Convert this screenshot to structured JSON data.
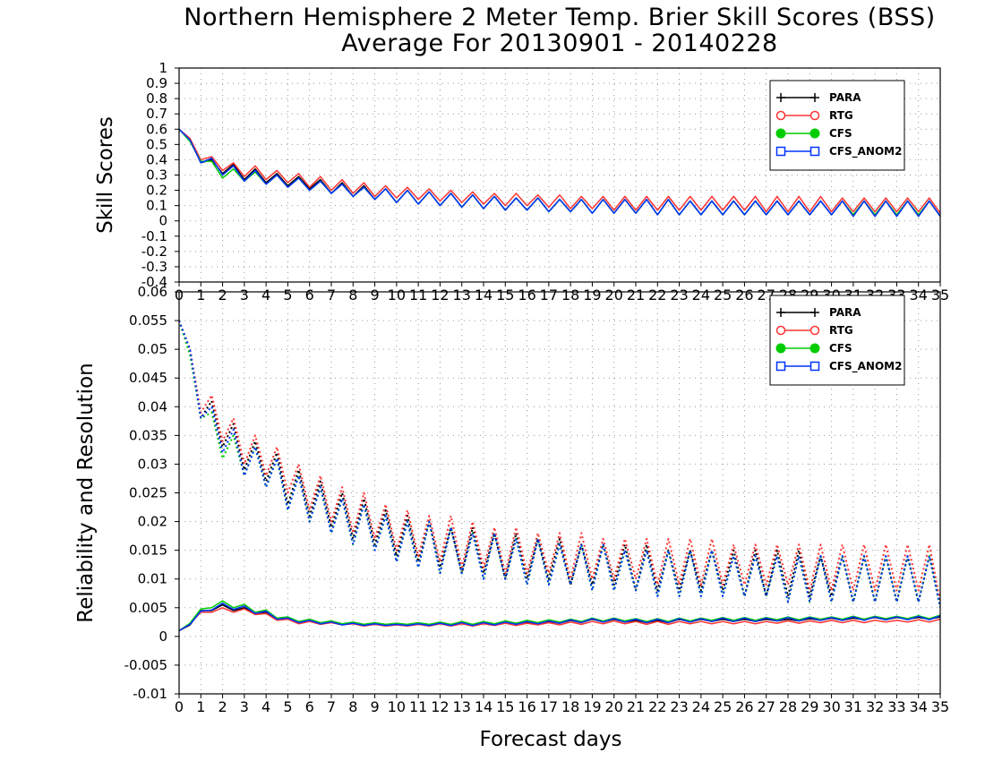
{
  "title": "Northern Hemisphere 2 Meter Temp. Brier Skill Scores (BSS)",
  "subtitle": "Average For 20130901 - 20140228",
  "colors": {
    "PARA": "#000000",
    "RTG": "#ff3333",
    "CFS": "#00cc00",
    "CFS_ANOM2": "#0033ff"
  },
  "chart_data": [
    {
      "type": "line",
      "ylabel": "Skill Scores",
      "xlim": [
        0,
        35
      ],
      "ylim": [
        -0.4,
        1
      ],
      "yticks": [
        -0.4,
        -0.3,
        -0.2,
        -0.1,
        0,
        0.1,
        0.2,
        0.3,
        0.4,
        0.5,
        0.6,
        0.7,
        0.8,
        0.9,
        1
      ],
      "ytick_labels": [
        "-0.4",
        "-0.3",
        "-0.2",
        "-0.1",
        "0",
        "0.1",
        "0.2",
        "0.3",
        "0.4",
        "0.5",
        "0.6",
        "0.7",
        "0.8",
        "0.9",
        "1"
      ],
      "xticks": [
        0,
        1,
        2,
        3,
        4,
        5,
        6,
        7,
        8,
        9,
        10,
        11,
        12,
        13,
        14,
        15,
        16,
        17,
        18,
        19,
        20,
        21,
        22,
        23,
        24,
        25,
        26,
        27,
        28,
        29,
        30,
        31,
        32,
        33,
        34,
        35
      ],
      "grid": true,
      "legend_position": "top-right",
      "series": [
        {
          "name": "PARA",
          "values": [
            0.6,
            0.53,
            0.38,
            0.4,
            0.31,
            0.37,
            0.27,
            0.34,
            0.25,
            0.31,
            0.23,
            0.29,
            0.21,
            0.27,
            0.18,
            0.25,
            0.16,
            0.23,
            0.14,
            0.21,
            0.12,
            0.2,
            0.11,
            0.19,
            0.1,
            0.18,
            0.09,
            0.17,
            0.08,
            0.16,
            0.07,
            0.15,
            0.07,
            0.15,
            0.06,
            0.14,
            0.06,
            0.14,
            0.05,
            0.14,
            0.05,
            0.14,
            0.05,
            0.14,
            0.04,
            0.14,
            0.04,
            0.13,
            0.04,
            0.13,
            0.04,
            0.13,
            0.04,
            0.13,
            0.04,
            0.13,
            0.04,
            0.13,
            0.04,
            0.13,
            0.04,
            0.13,
            0.03,
            0.13,
            0.03,
            0.13,
            0.03,
            0.13,
            0.03,
            0.13,
            0.03
          ]
        },
        {
          "name": "RTG",
          "values": [
            0.6,
            0.54,
            0.4,
            0.42,
            0.33,
            0.38,
            0.29,
            0.36,
            0.27,
            0.33,
            0.25,
            0.31,
            0.22,
            0.29,
            0.2,
            0.27,
            0.18,
            0.25,
            0.16,
            0.23,
            0.15,
            0.22,
            0.14,
            0.21,
            0.13,
            0.2,
            0.12,
            0.19,
            0.11,
            0.18,
            0.1,
            0.18,
            0.1,
            0.17,
            0.09,
            0.17,
            0.08,
            0.16,
            0.08,
            0.16,
            0.07,
            0.16,
            0.07,
            0.16,
            0.07,
            0.16,
            0.07,
            0.16,
            0.07,
            0.16,
            0.07,
            0.16,
            0.07,
            0.16,
            0.06,
            0.16,
            0.06,
            0.16,
            0.06,
            0.16,
            0.06,
            0.15,
            0.06,
            0.15,
            0.06,
            0.15,
            0.06,
            0.15,
            0.06,
            0.15,
            0.05
          ]
        },
        {
          "name": "CFS",
          "values": [
            0.6,
            0.52,
            0.39,
            0.39,
            0.28,
            0.34,
            0.26,
            0.32,
            0.24,
            0.3,
            0.22,
            0.28,
            0.2,
            0.26,
            0.18,
            0.24,
            0.16,
            0.22,
            0.14,
            0.21,
            0.12,
            0.2,
            0.11,
            0.19,
            0.1,
            0.18,
            0.09,
            0.17,
            0.08,
            0.16,
            0.07,
            0.15,
            0.07,
            0.15,
            0.06,
            0.14,
            0.06,
            0.14,
            0.05,
            0.14,
            0.05,
            0.14,
            0.05,
            0.14,
            0.04,
            0.14,
            0.04,
            0.13,
            0.04,
            0.13,
            0.04,
            0.13,
            0.04,
            0.13,
            0.04,
            0.13,
            0.04,
            0.13,
            0.04,
            0.13,
            0.04,
            0.13,
            0.04,
            0.13,
            0.04,
            0.13,
            0.04,
            0.13,
            0.04,
            0.13,
            0.03
          ]
        },
        {
          "name": "CFS_ANOM2",
          "values": [
            0.6,
            0.53,
            0.38,
            0.41,
            0.3,
            0.36,
            0.26,
            0.33,
            0.24,
            0.3,
            0.22,
            0.28,
            0.2,
            0.26,
            0.18,
            0.24,
            0.16,
            0.22,
            0.14,
            0.21,
            0.12,
            0.2,
            0.11,
            0.19,
            0.1,
            0.18,
            0.09,
            0.17,
            0.08,
            0.16,
            0.07,
            0.15,
            0.07,
            0.15,
            0.06,
            0.14,
            0.06,
            0.14,
            0.05,
            0.14,
            0.05,
            0.14,
            0.05,
            0.14,
            0.04,
            0.14,
            0.04,
            0.13,
            0.04,
            0.13,
            0.04,
            0.13,
            0.04,
            0.13,
            0.04,
            0.13,
            0.04,
            0.13,
            0.04,
            0.13,
            0.04,
            0.13,
            0.03,
            0.13,
            0.03,
            0.13,
            0.03,
            0.13,
            0.03,
            0.13,
            0.03
          ]
        }
      ]
    },
    {
      "type": "line",
      "ylabel": "Reliability and Resolution",
      "xlabel": "Forecast days",
      "xlim": [
        0,
        35
      ],
      "ylim": [
        -0.01,
        0.06
      ],
      "yticks": [
        -0.01,
        -0.005,
        0,
        0.005,
        0.01,
        0.015,
        0.02,
        0.025,
        0.03,
        0.035,
        0.04,
        0.045,
        0.05,
        0.055,
        0.06
      ],
      "ytick_labels": [
        "-0.01",
        "-0.005",
        "0",
        "0.005",
        "0.01",
        "0.015",
        "0.02",
        "0.025",
        "0.03",
        "0.035",
        "0.04",
        "0.045",
        "0.05",
        "0.055",
        "0.06"
      ],
      "xticks": [
        0,
        1,
        2,
        3,
        4,
        5,
        6,
        7,
        8,
        9,
        10,
        11,
        12,
        13,
        14,
        15,
        16,
        17,
        18,
        19,
        20,
        21,
        22,
        23,
        24,
        25,
        26,
        27,
        28,
        29,
        30,
        31,
        32,
        33,
        34,
        35
      ],
      "grid": true,
      "legend_position": "top-right",
      "resolution_series": [
        {
          "name": "PARA",
          "values": [
            0.055,
            0.05,
            0.038,
            0.041,
            0.033,
            0.037,
            0.029,
            0.034,
            0.027,
            0.032,
            0.023,
            0.029,
            0.021,
            0.027,
            0.019,
            0.025,
            0.017,
            0.024,
            0.016,
            0.022,
            0.014,
            0.021,
            0.013,
            0.02,
            0.012,
            0.019,
            0.011,
            0.019,
            0.011,
            0.018,
            0.01,
            0.018,
            0.01,
            0.017,
            0.01,
            0.017,
            0.009,
            0.016,
            0.009,
            0.016,
            0.009,
            0.016,
            0.008,
            0.016,
            0.008,
            0.015,
            0.008,
            0.015,
            0.008,
            0.015,
            0.008,
            0.015,
            0.007,
            0.015,
            0.007,
            0.015,
            0.007,
            0.015,
            0.007,
            0.014,
            0.007,
            0.014,
            0.006,
            0.014,
            0.006,
            0.014,
            0.006,
            0.014,
            0.006,
            0.014,
            0.006
          ]
        },
        {
          "name": "RTG",
          "values": [
            0.055,
            0.05,
            0.039,
            0.042,
            0.034,
            0.038,
            0.03,
            0.035,
            0.028,
            0.033,
            0.025,
            0.03,
            0.022,
            0.028,
            0.02,
            0.026,
            0.018,
            0.025,
            0.017,
            0.023,
            0.015,
            0.022,
            0.014,
            0.021,
            0.013,
            0.021,
            0.012,
            0.02,
            0.012,
            0.019,
            0.011,
            0.019,
            0.011,
            0.018,
            0.011,
            0.018,
            0.01,
            0.018,
            0.01,
            0.017,
            0.01,
            0.017,
            0.01,
            0.017,
            0.009,
            0.017,
            0.009,
            0.017,
            0.009,
            0.017,
            0.009,
            0.016,
            0.009,
            0.016,
            0.009,
            0.016,
            0.009,
            0.016,
            0.008,
            0.016,
            0.008,
            0.016,
            0.008,
            0.016,
            0.008,
            0.016,
            0.008,
            0.016,
            0.008,
            0.016,
            0.006
          ]
        },
        {
          "name": "CFS",
          "values": [
            0.055,
            0.049,
            0.038,
            0.039,
            0.031,
            0.035,
            0.028,
            0.033,
            0.026,
            0.031,
            0.022,
            0.028,
            0.02,
            0.026,
            0.018,
            0.024,
            0.016,
            0.023,
            0.015,
            0.021,
            0.013,
            0.02,
            0.012,
            0.02,
            0.011,
            0.019,
            0.011,
            0.018,
            0.01,
            0.018,
            0.01,
            0.017,
            0.009,
            0.017,
            0.009,
            0.016,
            0.009,
            0.016,
            0.008,
            0.016,
            0.008,
            0.015,
            0.008,
            0.015,
            0.007,
            0.015,
            0.007,
            0.015,
            0.007,
            0.015,
            0.007,
            0.014,
            0.007,
            0.014,
            0.007,
            0.014,
            0.006,
            0.014,
            0.006,
            0.014,
            0.006,
            0.014,
            0.006,
            0.014,
            0.006,
            0.014,
            0.006,
            0.014,
            0.006,
            0.014,
            0.005
          ]
        },
        {
          "name": "CFS_ANOM2",
          "values": [
            0.055,
            0.05,
            0.038,
            0.04,
            0.032,
            0.036,
            0.028,
            0.033,
            0.026,
            0.031,
            0.022,
            0.028,
            0.02,
            0.026,
            0.018,
            0.024,
            0.016,
            0.023,
            0.015,
            0.021,
            0.013,
            0.02,
            0.012,
            0.02,
            0.011,
            0.019,
            0.011,
            0.018,
            0.01,
            0.018,
            0.01,
            0.017,
            0.009,
            0.017,
            0.009,
            0.016,
            0.009,
            0.016,
            0.008,
            0.016,
            0.008,
            0.015,
            0.008,
            0.015,
            0.007,
            0.015,
            0.007,
            0.015,
            0.007,
            0.015,
            0.007,
            0.014,
            0.007,
            0.014,
            0.007,
            0.014,
            0.006,
            0.014,
            0.006,
            0.014,
            0.006,
            0.014,
            0.006,
            0.014,
            0.006,
            0.014,
            0.006,
            0.014,
            0.006,
            0.014,
            0.005
          ]
        }
      ],
      "reliability_series": [
        {
          "name": "PARA",
          "values": [
            0.001,
            0.002,
            0.0045,
            0.0045,
            0.0055,
            0.0045,
            0.005,
            0.004,
            0.0042,
            0.003,
            0.0032,
            0.0025,
            0.0028,
            0.0023,
            0.0025,
            0.0021,
            0.0024,
            0.002,
            0.0023,
            0.002,
            0.0022,
            0.002,
            0.0023,
            0.002,
            0.0024,
            0.002,
            0.0025,
            0.002,
            0.0025,
            0.0021,
            0.0025,
            0.0022,
            0.0025,
            0.0022,
            0.0026,
            0.0023,
            0.0028,
            0.0024,
            0.003,
            0.0025,
            0.003,
            0.0025,
            0.0028,
            0.0024,
            0.0028,
            0.0024,
            0.003,
            0.0025,
            0.003,
            0.0026,
            0.003,
            0.0026,
            0.003,
            0.0026,
            0.003,
            0.0027,
            0.003,
            0.0027,
            0.0031,
            0.0028,
            0.0032,
            0.0028,
            0.0032,
            0.0029,
            0.0033,
            0.0029,
            0.0033,
            0.003,
            0.0033,
            0.003,
            0.0034
          ]
        },
        {
          "name": "RTG",
          "values": [
            0.001,
            0.0022,
            0.0042,
            0.0042,
            0.005,
            0.0042,
            0.0048,
            0.0038,
            0.004,
            0.0028,
            0.003,
            0.0022,
            0.0026,
            0.0021,
            0.0024,
            0.002,
            0.0022,
            0.0018,
            0.0021,
            0.0018,
            0.002,
            0.0018,
            0.0021,
            0.0018,
            0.0022,
            0.0018,
            0.0022,
            0.0018,
            0.0022,
            0.0019,
            0.0023,
            0.0019,
            0.0023,
            0.002,
            0.0024,
            0.002,
            0.0025,
            0.0021,
            0.0026,
            0.0022,
            0.0027,
            0.0022,
            0.0026,
            0.0021,
            0.0026,
            0.0021,
            0.0026,
            0.0022,
            0.0026,
            0.0022,
            0.0026,
            0.0022,
            0.0026,
            0.0022,
            0.0026,
            0.0023,
            0.0027,
            0.0023,
            0.0027,
            0.0024,
            0.0028,
            0.0024,
            0.0028,
            0.0024,
            0.0028,
            0.0025,
            0.0028,
            0.0025,
            0.0029,
            0.0025,
            0.003
          ]
        },
        {
          "name": "CFS",
          "values": [
            0.001,
            0.0023,
            0.0048,
            0.005,
            0.0062,
            0.005,
            0.0056,
            0.0042,
            0.0046,
            0.0032,
            0.0034,
            0.0026,
            0.003,
            0.0024,
            0.0027,
            0.0022,
            0.0025,
            0.0021,
            0.0024,
            0.0021,
            0.0023,
            0.0021,
            0.0024,
            0.0021,
            0.0025,
            0.0021,
            0.0026,
            0.0021,
            0.0026,
            0.0022,
            0.0027,
            0.0023,
            0.0028,
            0.0024,
            0.0029,
            0.0025,
            0.003,
            0.0026,
            0.0032,
            0.0027,
            0.0032,
            0.0027,
            0.0031,
            0.0026,
            0.0031,
            0.0026,
            0.0032,
            0.0027,
            0.0032,
            0.0028,
            0.0033,
            0.0028,
            0.0033,
            0.0028,
            0.0033,
            0.0029,
            0.0034,
            0.0029,
            0.0034,
            0.003,
            0.0034,
            0.003,
            0.0035,
            0.003,
            0.0035,
            0.0031,
            0.0035,
            0.0031,
            0.0036,
            0.0031,
            0.0037
          ]
        },
        {
          "name": "CFS_ANOM2",
          "values": [
            0.001,
            0.0021,
            0.0044,
            0.0046,
            0.0058,
            0.0047,
            0.0053,
            0.004,
            0.0044,
            0.003,
            0.0032,
            0.0024,
            0.0028,
            0.0022,
            0.0025,
            0.002,
            0.0023,
            0.0019,
            0.0022,
            0.0019,
            0.0021,
            0.0019,
            0.0022,
            0.0019,
            0.0023,
            0.0019,
            0.0024,
            0.0019,
            0.0024,
            0.002,
            0.0025,
            0.0021,
            0.0026,
            0.0022,
            0.0027,
            0.0023,
            0.0029,
            0.0024,
            0.0031,
            0.0025,
            0.0031,
            0.0025,
            0.003,
            0.0024,
            0.003,
            0.0024,
            0.0031,
            0.0025,
            0.0031,
            0.0026,
            0.0032,
            0.0026,
            0.0032,
            0.0026,
            0.0032,
            0.0027,
            0.0033,
            0.0027,
            0.0033,
            0.0028,
            0.0033,
            0.0028,
            0.0034,
            0.0028,
            0.0034,
            0.0029,
            0.0034,
            0.0029,
            0.0035,
            0.0029,
            0.0036
          ]
        }
      ]
    }
  ]
}
